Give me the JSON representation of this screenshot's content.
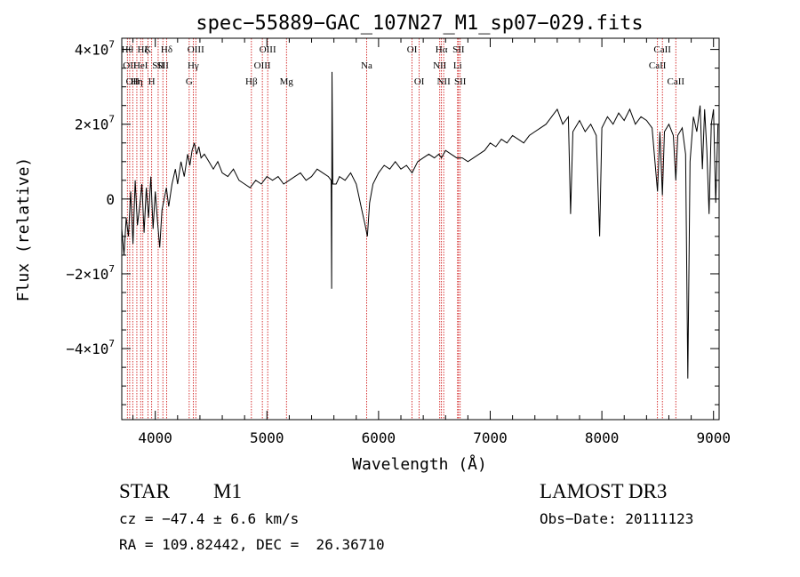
{
  "chart_data": {
    "type": "line",
    "title": "spec−55889−GAC_107N27_M1_sp07−029.fits",
    "xlabel": "Wavelength (Å)",
    "ylabel": "Flux (relative)",
    "xlim": [
      3700,
      9050
    ],
    "ylim": [
      -59000000,
      43000000
    ],
    "x_ticks": [
      {
        "value": 4000,
        "label": "4000"
      },
      {
        "value": 5000,
        "label": "5000"
      },
      {
        "value": 6000,
        "label": "6000"
      },
      {
        "value": 7000,
        "label": "7000"
      },
      {
        "value": 8000,
        "label": "8000"
      },
      {
        "value": 9000,
        "label": "9000"
      }
    ],
    "y_ticks": [
      {
        "value": 40000000,
        "label": "4×10",
        "exp": "7"
      },
      {
        "value": 20000000,
        "label": "2×10",
        "exp": "7"
      },
      {
        "value": 0,
        "label": "0",
        "exp": ""
      },
      {
        "value": -20000000,
        "label": "−2×10",
        "exp": "7"
      },
      {
        "value": -40000000,
        "label": "−4×10",
        "exp": "7"
      }
    ],
    "series": [
      {
        "name": "flux",
        "points": [
          [
            3700,
            -8000000
          ],
          [
            3720,
            -15000000
          ],
          [
            3740,
            -5000000
          ],
          [
            3760,
            -10000000
          ],
          [
            3780,
            2000000
          ],
          [
            3800,
            -12000000
          ],
          [
            3820,
            5000000
          ],
          [
            3840,
            -7000000
          ],
          [
            3860,
            -2000000
          ],
          [
            3880,
            4000000
          ],
          [
            3900,
            -9000000
          ],
          [
            3920,
            3000000
          ],
          [
            3940,
            -5000000
          ],
          [
            3960,
            6000000
          ],
          [
            3980,
            -8000000
          ],
          [
            4000,
            2000000
          ],
          [
            4020,
            -6000000
          ],
          [
            4040,
            -13000000
          ],
          [
            4060,
            -3000000
          ],
          [
            4080,
            0
          ],
          [
            4100,
            3000000
          ],
          [
            4120,
            -2000000
          ],
          [
            4150,
            4000000
          ],
          [
            4180,
            8000000
          ],
          [
            4200,
            4000000
          ],
          [
            4230,
            10000000
          ],
          [
            4260,
            6000000
          ],
          [
            4290,
            12000000
          ],
          [
            4310,
            9000000
          ],
          [
            4330,
            13000000
          ],
          [
            4350,
            15000000
          ],
          [
            4370,
            12000000
          ],
          [
            4390,
            14000000
          ],
          [
            4410,
            11000000
          ],
          [
            4440,
            12000000
          ],
          [
            4480,
            10000000
          ],
          [
            4520,
            8000000
          ],
          [
            4560,
            10000000
          ],
          [
            4600,
            7000000
          ],
          [
            4650,
            6000000
          ],
          [
            4700,
            8000000
          ],
          [
            4750,
            5000000
          ],
          [
            4800,
            4000000
          ],
          [
            4850,
            3000000
          ],
          [
            4900,
            5000000
          ],
          [
            4950,
            4000000
          ],
          [
            5000,
            6000000
          ],
          [
            5050,
            5000000
          ],
          [
            5100,
            6000000
          ],
          [
            5150,
            4000000
          ],
          [
            5200,
            5000000
          ],
          [
            5250,
            6000000
          ],
          [
            5300,
            7000000
          ],
          [
            5350,
            5000000
          ],
          [
            5400,
            6000000
          ],
          [
            5450,
            8000000
          ],
          [
            5500,
            7000000
          ],
          [
            5550,
            6000000
          ],
          [
            5575,
            5000000
          ],
          [
            5580,
            -24000000
          ],
          [
            5583,
            34000000
          ],
          [
            5590,
            4000000
          ],
          [
            5620,
            4000000
          ],
          [
            5650,
            6000000
          ],
          [
            5700,
            5000000
          ],
          [
            5750,
            7000000
          ],
          [
            5800,
            4000000
          ],
          [
            5850,
            -3000000
          ],
          [
            5880,
            -7000000
          ],
          [
            5900,
            -10000000
          ],
          [
            5920,
            -1000000
          ],
          [
            5950,
            4000000
          ],
          [
            6000,
            7000000
          ],
          [
            6050,
            9000000
          ],
          [
            6100,
            8000000
          ],
          [
            6150,
            10000000
          ],
          [
            6200,
            8000000
          ],
          [
            6250,
            9000000
          ],
          [
            6300,
            7000000
          ],
          [
            6350,
            10000000
          ],
          [
            6400,
            11000000
          ],
          [
            6450,
            12000000
          ],
          [
            6500,
            11000000
          ],
          [
            6540,
            12000000
          ],
          [
            6563,
            11000000
          ],
          [
            6600,
            13000000
          ],
          [
            6650,
            12000000
          ],
          [
            6700,
            11000000
          ],
          [
            6750,
            11000000
          ],
          [
            6800,
            10000000
          ],
          [
            6850,
            11000000
          ],
          [
            6900,
            12000000
          ],
          [
            6950,
            13000000
          ],
          [
            7000,
            15000000
          ],
          [
            7050,
            14000000
          ],
          [
            7100,
            16000000
          ],
          [
            7150,
            15000000
          ],
          [
            7200,
            17000000
          ],
          [
            7250,
            16000000
          ],
          [
            7300,
            15000000
          ],
          [
            7350,
            17000000
          ],
          [
            7400,
            18000000
          ],
          [
            7450,
            19000000
          ],
          [
            7500,
            20000000
          ],
          [
            7550,
            22000000
          ],
          [
            7600,
            24000000
          ],
          [
            7650,
            20000000
          ],
          [
            7700,
            22000000
          ],
          [
            7720,
            -4000000
          ],
          [
            7740,
            18000000
          ],
          [
            7800,
            21000000
          ],
          [
            7850,
            18000000
          ],
          [
            7900,
            20000000
          ],
          [
            7950,
            17000000
          ],
          [
            7980,
            -10000000
          ],
          [
            8000,
            19000000
          ],
          [
            8050,
            22000000
          ],
          [
            8100,
            20000000
          ],
          [
            8150,
            23000000
          ],
          [
            8200,
            21000000
          ],
          [
            8250,
            24000000
          ],
          [
            8300,
            20000000
          ],
          [
            8350,
            22000000
          ],
          [
            8400,
            21000000
          ],
          [
            8450,
            19000000
          ],
          [
            8498,
            2000000
          ],
          [
            8520,
            18000000
          ],
          [
            8542,
            1000000
          ],
          [
            8560,
            18000000
          ],
          [
            8600,
            20000000
          ],
          [
            8640,
            17000000
          ],
          [
            8662,
            5000000
          ],
          [
            8680,
            17000000
          ],
          [
            8720,
            19000000
          ],
          [
            8750,
            12000000
          ],
          [
            8770,
            -48000000
          ],
          [
            8790,
            10000000
          ],
          [
            8820,
            22000000
          ],
          [
            8850,
            18000000
          ],
          [
            8880,
            25000000
          ],
          [
            8900,
            8000000
          ],
          [
            8920,
            24000000
          ],
          [
            8940,
            13000000
          ],
          [
            8960,
            -4000000
          ],
          [
            8980,
            20000000
          ],
          [
            9000,
            24000000
          ],
          [
            9020,
            -1000000
          ],
          [
            9040,
            20000000
          ]
        ]
      }
    ],
    "lines": [
      {
        "w": 3750,
        "label": "Hθ",
        "row": 0
      },
      {
        "w": 3771,
        "label": "OII",
        "row": 1
      },
      {
        "w": 3798,
        "label": "OII",
        "row": 2
      },
      {
        "w": 3835,
        "label": "Hη",
        "row": 2
      },
      {
        "w": 3869,
        "label": "HeI",
        "row": 1
      },
      {
        "w": 3889,
        "label": "Hζ",
        "row": 0
      },
      {
        "w": 3934,
        "label": "K",
        "row": 0
      },
      {
        "w": 3968,
        "label": "H",
        "row": 2
      },
      {
        "w": 4026,
        "label": "SII",
        "row": 1
      },
      {
        "w": 4068,
        "label": "SII",
        "row": 1
      },
      {
        "w": 4102,
        "label": "Hδ",
        "row": 0
      },
      {
        "w": 4304,
        "label": "G",
        "row": 2
      },
      {
        "w": 4340,
        "label": "Hγ",
        "row": 1
      },
      {
        "w": 4363,
        "label": "OIII",
        "row": 0
      },
      {
        "w": 4861,
        "label": "Hβ",
        "row": 2
      },
      {
        "w": 4959,
        "label": "OIII",
        "row": 1
      },
      {
        "w": 5007,
        "label": "OIII",
        "row": 0
      },
      {
        "w": 5175,
        "label": "Mg",
        "row": 2
      },
      {
        "w": 5893,
        "label": "Na",
        "row": 1
      },
      {
        "w": 6300,
        "label": "OI",
        "row": 0
      },
      {
        "w": 6364,
        "label": "OI",
        "row": 2
      },
      {
        "w": 6548,
        "label": "NII",
        "row": 1
      },
      {
        "w": 6563,
        "label": "Hα",
        "row": 0
      },
      {
        "w": 6583,
        "label": "NII",
        "row": 2
      },
      {
        "w": 6708,
        "label": "Li",
        "row": 1
      },
      {
        "w": 6716,
        "label": "SII",
        "row": 0
      },
      {
        "w": 6731,
        "label": "SII",
        "row": 2
      },
      {
        "w": 8498,
        "label": "CaII",
        "row": 1
      },
      {
        "w": 8542,
        "label": "CaII",
        "row": 0
      },
      {
        "w": 8662,
        "label": "CaII",
        "row": 2
      }
    ]
  },
  "info": {
    "class": "STAR",
    "subclass": "M1",
    "survey": "LAMOST DR3",
    "cz": "cz = −47.4 ± 6.6 km/s",
    "obs_date": "Obs−Date: 20111123",
    "coords": "RA = 109.82442, DEC =  26.36710"
  },
  "colors": {
    "axis": "#000000",
    "line_marker": "#cc0000",
    "spectrum": "#000000"
  }
}
